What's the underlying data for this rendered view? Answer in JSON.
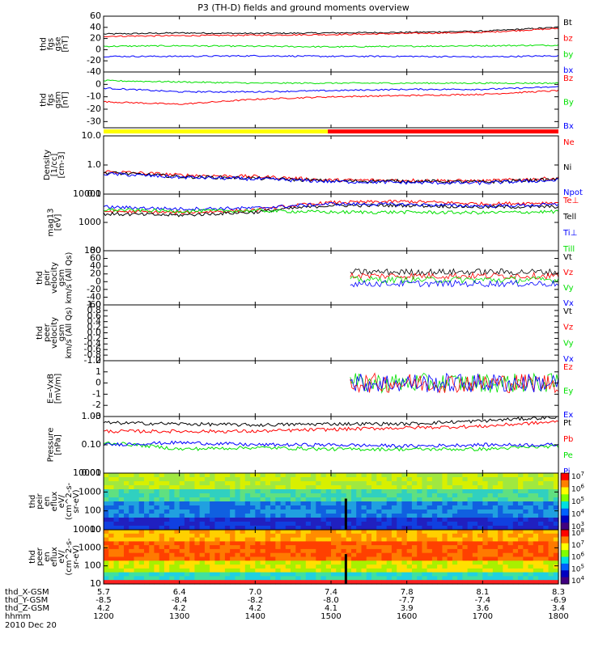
{
  "title": "P3 (TH-D) fields and ground moments overview",
  "colors": {
    "black": "#000000",
    "red": "#ff0000",
    "green": "#00e000",
    "blue": "#0000ff"
  },
  "panels": [
    {
      "id": "fgs-gse",
      "ylabel": [
        "thd",
        "fgs",
        "gse",
        "[nT]"
      ],
      "ylim": [
        -40,
        60
      ],
      "yscale": "linear",
      "yticks": [
        "60",
        "40",
        "20",
        "0",
        "-20",
        "-40"
      ],
      "legend": [
        {
          "text": "Bt",
          "color": "black"
        },
        {
          "text": "bz",
          "color": "red"
        },
        {
          "text": "by",
          "color": "green"
        },
        {
          "text": "bx",
          "color": "blue"
        }
      ]
    },
    {
      "id": "fgs-gsm",
      "ylabel": [
        "thd",
        "fgs",
        "gsm",
        "[nT]"
      ],
      "ylim": [
        -35,
        10
      ],
      "yscale": "linear",
      "yticks": [
        "0",
        "-10",
        "-20",
        "-30"
      ],
      "legend": [
        {
          "text": "Bz",
          "color": "red"
        },
        {
          "text": "By",
          "color": "green"
        },
        {
          "text": "Bx",
          "color": "blue"
        }
      ]
    },
    {
      "id": "density",
      "ylabel": [
        "Density",
        "[1/cc]",
        "[cm-3]"
      ],
      "ylim": [
        0.1,
        10
      ],
      "yscale": "log",
      "yticks": [
        "10.0",
        "1.0",
        "0.1"
      ],
      "legend": [
        {
          "text": "Ne",
          "color": "red"
        },
        {
          "text": "Ni",
          "color": "black"
        },
        {
          "text": "Npot",
          "color": "blue"
        }
      ]
    },
    {
      "id": "temperature",
      "ylabel": [
        "mag13",
        "[eV]"
      ],
      "ylim": [
        100,
        10000
      ],
      "yscale": "log",
      "yticks": [
        "10000",
        "1000",
        "100"
      ],
      "legend": [
        {
          "text": "Te⊥",
          "color": "red"
        },
        {
          "text": "Tell",
          "color": "black"
        },
        {
          "text": "Ti⊥",
          "color": "blue"
        },
        {
          "text": "Till",
          "color": "green"
        }
      ]
    },
    {
      "id": "peir-velocity",
      "ylabel": [
        "thd",
        "peir",
        "velocity",
        "gsm",
        "km/s (All Qs)"
      ],
      "ylim": [
        -60,
        80
      ],
      "yscale": "linear",
      "yticks": [
        "80",
        "60",
        "40",
        "20",
        "0",
        "-20",
        "-40",
        "-60"
      ],
      "legend": [
        {
          "text": "Vt",
          "color": "black"
        },
        {
          "text": "Vz",
          "color": "red"
        },
        {
          "text": "Vy",
          "color": "green"
        },
        {
          "text": "Vx",
          "color": "blue"
        }
      ]
    },
    {
      "id": "peer-velocity",
      "ylabel": [
        "thd",
        "peer",
        "velocity",
        "gsm",
        "km/s (All Qs)"
      ],
      "ylim": [
        -1.0,
        1.0
      ],
      "yscale": "linear",
      "yticks": [
        "1.0",
        "0.8",
        "0.6",
        "0.4",
        "0.2",
        "0.0",
        "-0.2",
        "-0.4",
        "-0.6",
        "-0.8",
        "-1.0"
      ],
      "legend": [
        {
          "text": "Vt",
          "color": "black"
        },
        {
          "text": "Vz",
          "color": "red"
        },
        {
          "text": "Vy",
          "color": "green"
        },
        {
          "text": "Vx",
          "color": "blue"
        }
      ]
    },
    {
      "id": "efield",
      "ylabel": [
        "E=-VxB",
        "[mV/m]"
      ],
      "ylim": [
        -3,
        2
      ],
      "yscale": "linear",
      "yticks": [
        "2",
        "1",
        "0",
        "-1",
        "-2",
        "-3"
      ],
      "legend": [
        {
          "text": "Ez",
          "color": "red"
        },
        {
          "text": "Ey",
          "color": "green"
        },
        {
          "text": "Ex",
          "color": "blue"
        }
      ]
    },
    {
      "id": "pressure",
      "ylabel": [
        "Pressure",
        "[nPa]"
      ],
      "ylim": [
        0.01,
        1.0
      ],
      "yscale": "log",
      "yticks": [
        "1.00",
        "0.10",
        "0.01"
      ],
      "legend": [
        {
          "text": "Pt",
          "color": "black"
        },
        {
          "text": "Pb",
          "color": "red"
        },
        {
          "text": "Pe",
          "color": "green"
        },
        {
          "text": "Pi",
          "color": "blue"
        }
      ]
    },
    {
      "id": "peir-eflux",
      "ylabel": [
        "thd",
        "peir",
        "en",
        "eflux",
        "eV/",
        "(cm^2-s-",
        "sr-eV)"
      ],
      "ylim": [
        10,
        10000
      ],
      "yscale": "log",
      "yticks": [
        "10000",
        "1000",
        "100",
        "10"
      ],
      "colorbar": {
        "labels": [
          "10^7",
          "10^6",
          "10^5",
          "10^4",
          "10^3"
        ]
      }
    },
    {
      "id": "peer-eflux",
      "ylabel": [
        "thd",
        "peer",
        "en",
        "eflux",
        "eV/",
        "(cm^2-s-",
        "sr-eV)"
      ],
      "ylim": [
        10,
        10000
      ],
      "yscale": "log",
      "yticks": [
        "10000",
        "1000",
        "100",
        "10"
      ],
      "colorbar": {
        "labels": [
          "10^8",
          "10^7",
          "10^6",
          "10^5",
          "10^4"
        ]
      }
    }
  ],
  "mode_bar": {
    "yellow_until": 0.493,
    "color_before": "#ffff00",
    "color_after": "#ff0000"
  },
  "x_axis": {
    "rows": [
      {
        "label": "thd_X-GSM",
        "values": [
          "5.7",
          "6.4",
          "7.0",
          "7.4",
          "7.8",
          "8.1",
          "8.3"
        ]
      },
      {
        "label": "thd_Y-GSM",
        "values": [
          "-8.5",
          "-8.4",
          "-8.2",
          "-8.0",
          "-7.7",
          "-7.4",
          "-6.9"
        ]
      },
      {
        "label": "thd_Z-GSM",
        "values": [
          "4.2",
          "4.2",
          "4.2",
          "4.1",
          "3.9",
          "3.6",
          "3.4"
        ]
      },
      {
        "label": "hhmm",
        "values": [
          "1200",
          "1300",
          "1400",
          "1500",
          "1600",
          "1700",
          "1800"
        ]
      }
    ],
    "date": "2010 Dec 20"
  },
  "chart_data": {
    "type": "line",
    "title": "P3 (TH-D) fields and ground moments overview",
    "x": [
      "1200",
      "1300",
      "1400",
      "1500",
      "1600",
      "1700",
      "1800"
    ],
    "series": [
      {
        "name": "Bt",
        "panel": "fgs-gse",
        "values": [
          28,
          30,
          29,
          30,
          31,
          33,
          40
        ]
      },
      {
        "name": "bz",
        "panel": "fgs-gse",
        "values": [
          24,
          25,
          26,
          27,
          29,
          31,
          38
        ]
      },
      {
        "name": "by",
        "panel": "fgs-gse",
        "values": [
          6,
          7,
          6,
          5,
          6,
          7,
          8
        ]
      },
      {
        "name": "bx",
        "panel": "fgs-gse",
        "values": [
          -12,
          -12,
          -11,
          -12,
          -12,
          -13,
          -11
        ]
      },
      {
        "name": "Bz",
        "panel": "fgs-gsm",
        "values": [
          -14,
          -16,
          -12,
          -10,
          -9,
          -8,
          -5
        ]
      },
      {
        "name": "By",
        "panel": "fgs-gsm",
        "values": [
          3,
          2,
          1,
          1,
          1,
          1,
          1
        ]
      },
      {
        "name": "Bx",
        "panel": "fgs-gsm",
        "values": [
          -3,
          -6,
          -6,
          -5,
          -4,
          -4,
          -2
        ]
      },
      {
        "name": "Ne",
        "panel": "density",
        "values": [
          0.6,
          0.45,
          0.4,
          0.3,
          0.3,
          0.28,
          0.35
        ]
      },
      {
        "name": "Ni",
        "panel": "density",
        "values": [
          0.55,
          0.4,
          0.35,
          0.28,
          0.28,
          0.26,
          0.32
        ]
      },
      {
        "name": "Npot",
        "panel": "density",
        "values": [
          0.5,
          0.38,
          0.33,
          0.27,
          0.25,
          0.24,
          0.3
        ]
      },
      {
        "name": "Te⊥",
        "panel": "temperature",
        "values": [
          2500,
          2200,
          2700,
          5000,
          5500,
          4500,
          5000
        ]
      },
      {
        "name": "Tell",
        "panel": "temperature",
        "values": [
          2000,
          1800,
          2300,
          4000,
          4000,
          3500,
          3600
        ]
      },
      {
        "name": "Ti⊥",
        "panel": "temperature",
        "values": [
          3500,
          3000,
          3200,
          4500,
          4300,
          3800,
          4200
        ]
      },
      {
        "name": "Till",
        "panel": "temperature",
        "values": [
          2800,
          2500,
          2600,
          2300,
          2300,
          2200,
          2400
        ]
      },
      {
        "name": "Pt",
        "panel": "pressure",
        "values": [
          0.6,
          0.55,
          0.5,
          0.55,
          0.55,
          0.7,
          0.95
        ]
      },
      {
        "name": "Pb",
        "panel": "pressure",
        "values": [
          0.3,
          0.3,
          0.3,
          0.35,
          0.4,
          0.45,
          0.65
        ]
      },
      {
        "name": "Pe",
        "panel": "pressure",
        "values": [
          0.12,
          0.07,
          0.08,
          0.07,
          0.07,
          0.07,
          0.09
        ]
      },
      {
        "name": "Pi",
        "panel": "pressure",
        "values": [
          0.1,
          0.12,
          0.1,
          0.1,
          0.09,
          0.1,
          0.1
        ]
      }
    ]
  }
}
